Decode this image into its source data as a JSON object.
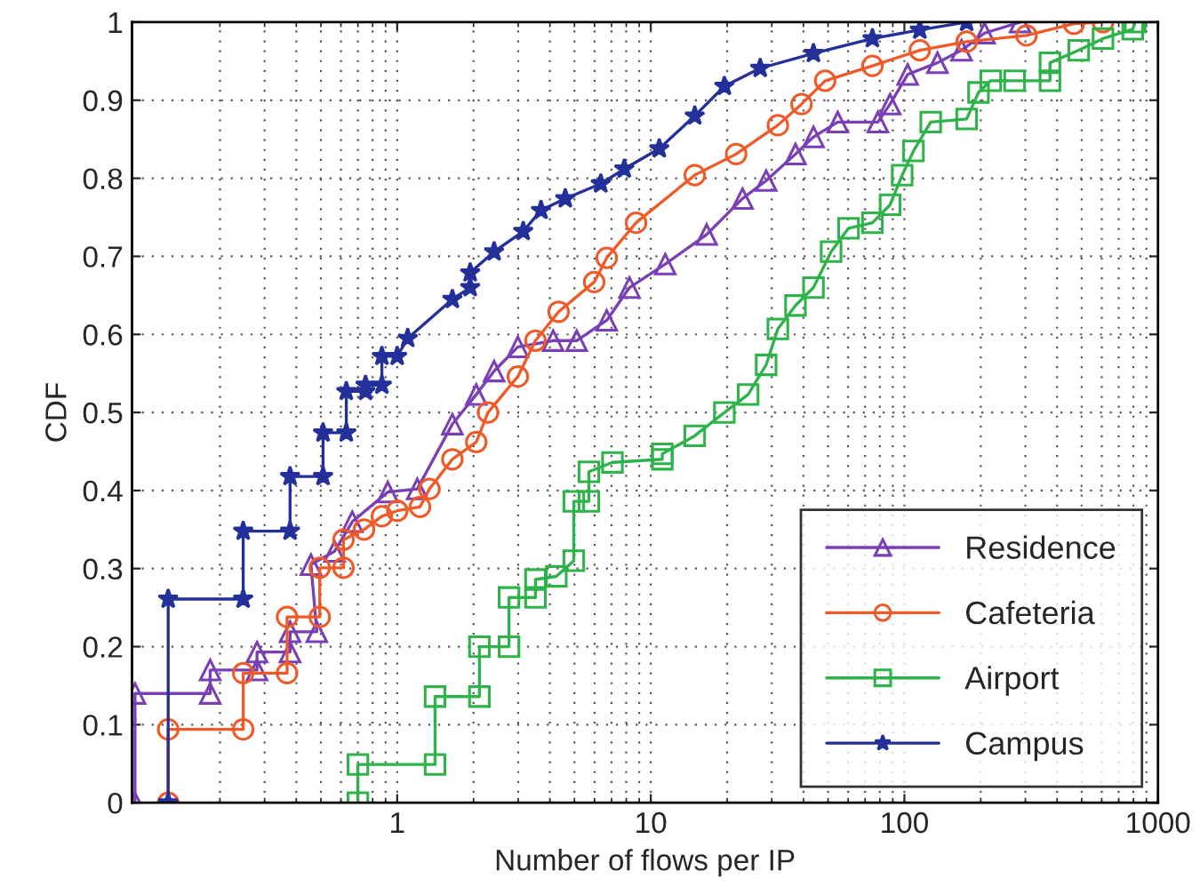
{
  "chart_data": {
    "type": "line",
    "xlabel": "Number of flows per IP",
    "ylabel": "CDF",
    "log": "x",
    "xlim": [
      0.09,
      1000
    ],
    "xticks": [
      1,
      10,
      100,
      1000
    ],
    "ylim": [
      0,
      1
    ],
    "yticks": [
      0,
      0.1,
      0.2,
      0.3,
      0.4,
      0.5,
      0.6,
      0.7,
      0.8,
      0.9,
      1
    ],
    "grid": true,
    "legend": "bottom right",
    "line_style": "solid",
    "series": [
      {
        "name": "Residence",
        "color": "#7b3fb5",
        "marker": "triangle",
        "x": [
          0.0925,
          0.0925,
          0.183,
          0.183,
          0.28,
          0.28,
          0.378,
          0.378,
          0.482,
          0.457,
          0.566,
          0.665,
          0.918,
          1.2,
          1.65,
          2.05,
          2.41,
          2.99,
          4.12,
          5.1,
          6.7,
          8.24,
          11.4,
          16.6,
          23,
          28.5,
          37.2,
          43.8,
          54.6,
          78.6,
          87.8,
          103,
          135,
          168,
          207,
          286
        ],
        "values": [
          0,
          0.14,
          0.14,
          0.17,
          0.17,
          0.193,
          0.193,
          0.219,
          0.219,
          0.305,
          0.322,
          0.36,
          0.398,
          0.402,
          0.485,
          0.523,
          0.553,
          0.584,
          0.592,
          0.592,
          0.618,
          0.66,
          0.69,
          0.728,
          0.774,
          0.797,
          0.831,
          0.853,
          0.872,
          0.872,
          0.895,
          0.933,
          0.948,
          0.964,
          0.986,
          1.0
        ]
      },
      {
        "name": "Cafeteria",
        "color": "#f05a28",
        "marker": "circle",
        "x": [
          0.125,
          0.125,
          0.247,
          0.247,
          0.368,
          0.368,
          0.495,
          0.495,
          0.614,
          0.614,
          0.74,
          0.87,
          1.0,
          1.23,
          1.34,
          1.65,
          2.05,
          2.28,
          2.99,
          3.51,
          4.33,
          5.98,
          6.7,
          8.75,
          14.9,
          21.7,
          31.7,
          39.3,
          48.7,
          74.8,
          115,
          176,
          303,
          466,
          607
        ],
        "values": [
          0,
          0.094,
          0.094,
          0.166,
          0.166,
          0.238,
          0.238,
          0.301,
          0.301,
          0.337,
          0.35,
          0.367,
          0.374,
          0.379,
          0.402,
          0.44,
          0.462,
          0.5,
          0.546,
          0.592,
          0.629,
          0.667,
          0.698,
          0.743,
          0.804,
          0.831,
          0.868,
          0.895,
          0.925,
          0.944,
          0.964,
          0.975,
          0.983,
          0.998,
          1.0
        ]
      },
      {
        "name": "Airport",
        "color": "#2db34a",
        "marker": "square",
        "x": [
          0.7,
          0.7,
          1.41,
          1.41,
          2.11,
          2.11,
          2.76,
          2.76,
          3.51,
          3.51,
          4.24,
          4.97,
          4.97,
          5.7,
          5.7,
          7.06,
          11.1,
          11.1,
          14.9,
          19.5,
          24.2,
          28.5,
          31.7,
          37.2,
          43.8,
          51.4,
          60.2,
          74.8,
          87.8,
          98,
          108.6,
          127,
          176,
          196,
          219,
          272,
          375,
          375,
          487,
          607,
          795,
          813
        ],
        "values": [
          0,
          0.049,
          0.049,
          0.136,
          0.136,
          0.2,
          0.2,
          0.263,
          0.263,
          0.286,
          0.29,
          0.31,
          0.386,
          0.386,
          0.424,
          0.436,
          0.44,
          0.447,
          0.47,
          0.5,
          0.523,
          0.561,
          0.607,
          0.637,
          0.66,
          0.706,
          0.736,
          0.743,
          0.766,
          0.804,
          0.835,
          0.872,
          0.876,
          0.91,
          0.925,
          0.925,
          0.925,
          0.948,
          0.964,
          0.979,
          0.991,
          1.0
        ]
      },
      {
        "name": "Campus",
        "color": "#24309a",
        "marker": "star",
        "x": [
          0.125,
          0.125,
          0.247,
          0.247,
          0.378,
          0.378,
          0.51,
          0.51,
          0.63,
          0.63,
          0.75,
          0.75,
          0.87,
          0.87,
          1.0,
          1.1,
          1.65,
          1.94,
          1.94,
          2.41,
          3.14,
          3.69,
          4.6,
          6.35,
          7.86,
          10.8,
          14.9,
          19.5,
          27.0,
          43.8,
          74.8,
          115,
          176
        ],
        "values": [
          0,
          0.261,
          0.261,
          0.348,
          0.348,
          0.418,
          0.418,
          0.474,
          0.474,
          0.527,
          0.527,
          0.535,
          0.535,
          0.572,
          0.572,
          0.595,
          0.645,
          0.66,
          0.679,
          0.706,
          0.732,
          0.759,
          0.774,
          0.793,
          0.812,
          0.838,
          0.88,
          0.918,
          0.941,
          0.96,
          0.979,
          0.99,
          1.0
        ]
      }
    ]
  }
}
